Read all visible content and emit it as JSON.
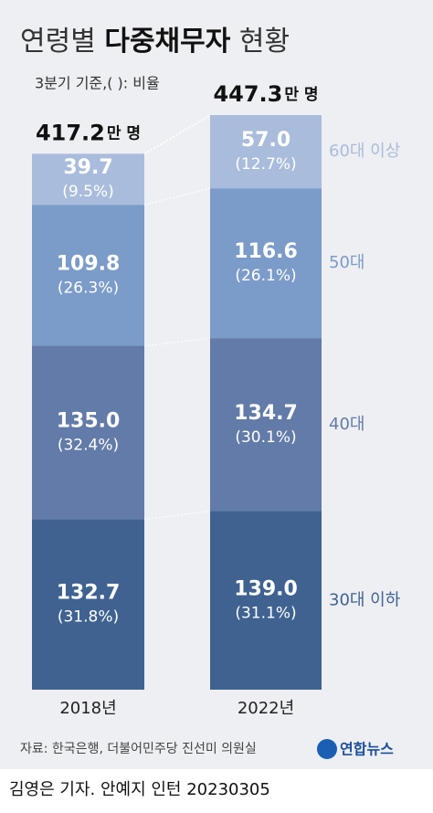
{
  "chart_data": {
    "type": "stacked-bar",
    "title": {
      "before": "연령별",
      "bold": "다중채무자",
      "after": "현황"
    },
    "subtitle": "3분기 기준,( ): 비율",
    "categories": [
      "2018년",
      "2022년"
    ],
    "totals": [
      417.2,
      447.3
    ],
    "total_unit": "만 명",
    "series": [
      {
        "name": "30대 이하",
        "color": "#3f6291",
        "values": [
          132.7,
          139.0
        ],
        "value_labels": [
          "132.7",
          "139.0"
        ],
        "share_labels": [
          "(31.8%)",
          "(31.1%)"
        ]
      },
      {
        "name": "40대",
        "color": "#627ba8",
        "values": [
          135.0,
          134.7
        ],
        "value_labels": [
          "135.0",
          "134.7"
        ],
        "share_labels": [
          "(32.4%)",
          "(30.1%)"
        ]
      },
      {
        "name": "50대",
        "color": "#7b9bc9",
        "values": [
          109.8,
          116.6
        ],
        "value_labels": [
          "109.8",
          "116.6"
        ],
        "share_labels": [
          "(26.3%)",
          "(26.1%)"
        ]
      },
      {
        "name": "60대 이상",
        "color": "#a9bcdc",
        "values": [
          39.7,
          57.0
        ],
        "value_labels": [
          "39.7",
          "57.0"
        ],
        "share_labels": [
          "(9.5%)",
          "(12.7%)"
        ]
      }
    ],
    "source": "자료: 한국은행, 더불어민주당 진선미 의원실",
    "logo": "연합뉴스",
    "credit": "김영은 기자. 안예지 인턴  20230305"
  }
}
